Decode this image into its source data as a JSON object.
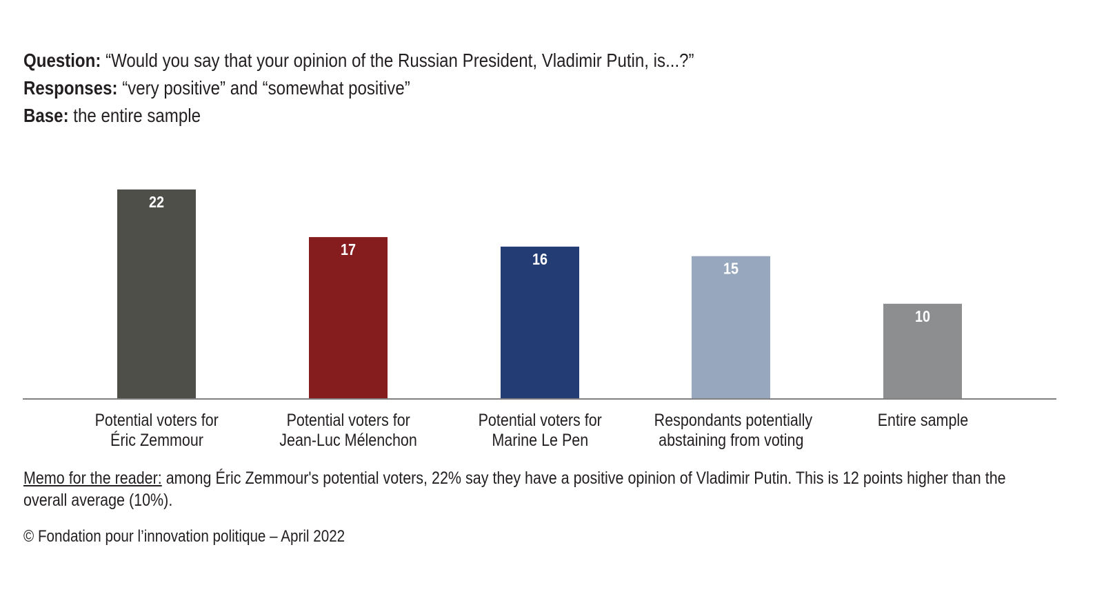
{
  "header": {
    "question_label": "Question:",
    "question_text": "“Would you say that your opinion of the Russian President, Vladimir Putin, is...?”",
    "responses_label": "Responses:",
    "responses_text": "“very positive” and “somewhat positive”",
    "base_label": "Base:",
    "base_text": "the entire sample"
  },
  "chart_data": {
    "type": "bar",
    "title": "",
    "xlabel": "",
    "ylabel": "",
    "ylim": [
      0,
      22
    ],
    "grid": false,
    "categories": [
      [
        "Potential voters for",
        "Éric Zemmour"
      ],
      [
        "Potential voters for",
        "Jean-Luc Mélenchon"
      ],
      [
        "Potential voters for",
        "Marine Le Pen"
      ],
      [
        "Respondants potentially",
        "abstaining from voting"
      ],
      [
        "Entire sample"
      ]
    ],
    "values": [
      22,
      17,
      16,
      15,
      10
    ],
    "value_labels": [
      "22",
      "17",
      "16",
      "15",
      "10"
    ],
    "colors": [
      "#4f4f49",
      "#851c1d",
      "#233d74",
      "#97a7bd",
      "#8c8e8f"
    ]
  },
  "memo": {
    "label": "Memo for the reader:",
    "text": " among Éric Zemmour's potential voters, 22% say they have a positive opinion of Vladimir Putin. This is 12 points higher than the overall average (10%)."
  },
  "credit": "© Fondation pour l’innovation politique – April 2022"
}
